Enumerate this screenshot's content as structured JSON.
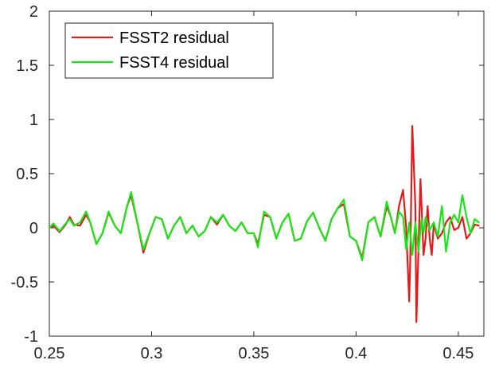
{
  "chart_data": {
    "type": "line",
    "title": "",
    "xlabel": "",
    "ylabel": "",
    "xlim": [
      0.25,
      0.4625
    ],
    "ylim": [
      -1,
      2
    ],
    "xticks": [
      0.25,
      0.3,
      0.35,
      0.4,
      0.45
    ],
    "xtick_labels": [
      "0.25",
      "0.3",
      "0.35",
      "0.4",
      "0.45"
    ],
    "yticks": [
      -1,
      -0.5,
      0,
      0.5,
      1,
      1.5,
      2
    ],
    "ytick_labels": [
      "-1",
      "-0.5",
      "0",
      "0.5",
      "1",
      "1.5",
      "2"
    ],
    "grid": false,
    "legend": {
      "position": "top-left"
    },
    "series": [
      {
        "name": "FSST2 residual",
        "color": "#e31a1c",
        "points": [
          [
            0.25,
            0.0
          ],
          [
            0.252,
            0.02
          ],
          [
            0.255,
            -0.04
          ],
          [
            0.258,
            0.03
          ],
          [
            0.26,
            0.1
          ],
          [
            0.262,
            0.03
          ],
          [
            0.265,
            0.02
          ],
          [
            0.268,
            0.12
          ],
          [
            0.27,
            0.05
          ],
          [
            0.273,
            -0.15
          ],
          [
            0.276,
            -0.05
          ],
          [
            0.279,
            0.14
          ],
          [
            0.282,
            0.02
          ],
          [
            0.285,
            -0.05
          ],
          [
            0.288,
            0.2
          ],
          [
            0.29,
            0.3
          ],
          [
            0.293,
            0.05
          ],
          [
            0.296,
            -0.23
          ],
          [
            0.299,
            -0.05
          ],
          [
            0.302,
            0.1
          ],
          [
            0.305,
            0.08
          ],
          [
            0.308,
            -0.1
          ],
          [
            0.311,
            0.02
          ],
          [
            0.314,
            0.1
          ],
          [
            0.317,
            -0.05
          ],
          [
            0.32,
            0.02
          ],
          [
            0.323,
            -0.08
          ],
          [
            0.326,
            -0.03
          ],
          [
            0.329,
            0.1
          ],
          [
            0.332,
            0.03
          ],
          [
            0.335,
            0.12
          ],
          [
            0.338,
            0.02
          ],
          [
            0.341,
            -0.03
          ],
          [
            0.344,
            0.05
          ],
          [
            0.347,
            -0.05
          ],
          [
            0.35,
            -0.05
          ],
          [
            0.352,
            -0.15
          ],
          [
            0.355,
            0.12
          ],
          [
            0.358,
            0.1
          ],
          [
            0.361,
            -0.1
          ],
          [
            0.364,
            0.05
          ],
          [
            0.367,
            0.13
          ],
          [
            0.37,
            -0.12
          ],
          [
            0.373,
            -0.1
          ],
          [
            0.376,
            0.06
          ],
          [
            0.379,
            0.14
          ],
          [
            0.382,
            0.0
          ],
          [
            0.385,
            -0.12
          ],
          [
            0.388,
            0.08
          ],
          [
            0.391,
            0.18
          ],
          [
            0.394,
            0.22
          ],
          [
            0.397,
            -0.08
          ],
          [
            0.4,
            -0.12
          ],
          [
            0.403,
            -0.28
          ],
          [
            0.406,
            0.05
          ],
          [
            0.409,
            0.1
          ],
          [
            0.412,
            -0.08
          ],
          [
            0.415,
            0.2
          ],
          [
            0.417,
            0.1
          ],
          [
            0.419,
            -0.05
          ],
          [
            0.421,
            0.2
          ],
          [
            0.423,
            0.35
          ],
          [
            0.4245,
            0.0
          ],
          [
            0.426,
            -0.68
          ],
          [
            0.4265,
            -0.3
          ],
          [
            0.4275,
            0.94
          ],
          [
            0.429,
            0.2
          ],
          [
            0.4295,
            -0.87
          ],
          [
            0.4315,
            0.45
          ],
          [
            0.433,
            -0.25
          ],
          [
            0.434,
            -0.1
          ],
          [
            0.435,
            0.2
          ],
          [
            0.436,
            -0.1
          ],
          [
            0.437,
            -0.25
          ],
          [
            0.438,
            0.03
          ],
          [
            0.44,
            -0.1
          ],
          [
            0.442,
            -0.05
          ],
          [
            0.444,
            0.05
          ],
          [
            0.446,
            0.1
          ],
          [
            0.448,
            -0.02
          ],
          [
            0.45,
            0.0
          ],
          [
            0.452,
            0.1
          ],
          [
            0.454,
            -0.1
          ],
          [
            0.456,
            -0.05
          ],
          [
            0.458,
            0.03
          ],
          [
            0.46,
            0.02
          ]
        ]
      },
      {
        "name": "FSST4 residual",
        "color": "#19e619",
        "points": [
          [
            0.25,
            0.0
          ],
          [
            0.252,
            0.04
          ],
          [
            0.255,
            -0.03
          ],
          [
            0.258,
            0.04
          ],
          [
            0.26,
            0.08
          ],
          [
            0.262,
            0.02
          ],
          [
            0.265,
            0.05
          ],
          [
            0.268,
            0.15
          ],
          [
            0.27,
            0.05
          ],
          [
            0.273,
            -0.15
          ],
          [
            0.276,
            -0.05
          ],
          [
            0.279,
            0.15
          ],
          [
            0.282,
            0.02
          ],
          [
            0.285,
            -0.05
          ],
          [
            0.288,
            0.2
          ],
          [
            0.29,
            0.33
          ],
          [
            0.293,
            0.05
          ],
          [
            0.296,
            -0.2
          ],
          [
            0.299,
            -0.05
          ],
          [
            0.302,
            0.1
          ],
          [
            0.305,
            0.08
          ],
          [
            0.308,
            -0.1
          ],
          [
            0.311,
            0.02
          ],
          [
            0.314,
            0.1
          ],
          [
            0.317,
            -0.05
          ],
          [
            0.32,
            0.02
          ],
          [
            0.323,
            -0.08
          ],
          [
            0.326,
            -0.03
          ],
          [
            0.329,
            0.1
          ],
          [
            0.332,
            0.05
          ],
          [
            0.335,
            0.12
          ],
          [
            0.338,
            0.02
          ],
          [
            0.341,
            -0.03
          ],
          [
            0.344,
            0.05
          ],
          [
            0.347,
            -0.05
          ],
          [
            0.35,
            -0.05
          ],
          [
            0.352,
            -0.18
          ],
          [
            0.355,
            0.15
          ],
          [
            0.358,
            0.1
          ],
          [
            0.361,
            -0.1
          ],
          [
            0.364,
            0.05
          ],
          [
            0.367,
            0.13
          ],
          [
            0.37,
            -0.12
          ],
          [
            0.373,
            -0.1
          ],
          [
            0.376,
            0.06
          ],
          [
            0.379,
            0.14
          ],
          [
            0.382,
            0.0
          ],
          [
            0.385,
            -0.12
          ],
          [
            0.388,
            0.08
          ],
          [
            0.391,
            0.18
          ],
          [
            0.394,
            0.26
          ],
          [
            0.397,
            -0.08
          ],
          [
            0.4,
            -0.12
          ],
          [
            0.403,
            -0.3
          ],
          [
            0.406,
            0.05
          ],
          [
            0.409,
            0.1
          ],
          [
            0.412,
            -0.08
          ],
          [
            0.415,
            0.24
          ],
          [
            0.417,
            0.1
          ],
          [
            0.419,
            -0.05
          ],
          [
            0.421,
            0.15
          ],
          [
            0.423,
            0.1
          ],
          [
            0.4245,
            -0.2
          ],
          [
            0.426,
            0.05
          ],
          [
            0.4275,
            -0.25
          ],
          [
            0.429,
            0.05
          ],
          [
            0.4305,
            -0.22
          ],
          [
            0.432,
            0.08
          ],
          [
            0.433,
            -0.05
          ],
          [
            0.434,
            0.1
          ],
          [
            0.436,
            -0.02
          ],
          [
            0.438,
            0.05
          ],
          [
            0.44,
            -0.08
          ],
          [
            0.442,
            0.2
          ],
          [
            0.444,
            -0.22
          ],
          [
            0.446,
            0.05
          ],
          [
            0.448,
            0.12
          ],
          [
            0.45,
            0.05
          ],
          [
            0.452,
            0.3
          ],
          [
            0.454,
            0.1
          ],
          [
            0.456,
            -0.05
          ],
          [
            0.458,
            0.08
          ],
          [
            0.46,
            0.05
          ]
        ]
      }
    ]
  }
}
